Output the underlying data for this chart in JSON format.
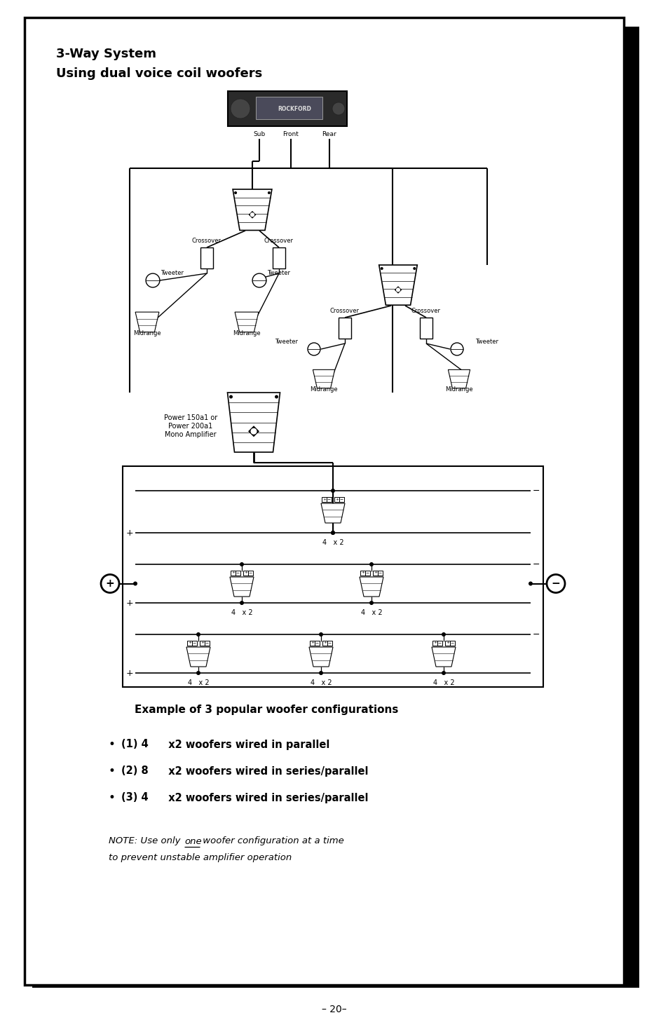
{
  "page_bg": "#ffffff",
  "border_color": "#000000",
  "title_line1": "3-Way System",
  "title_line2": "Using dual voice coil woofers",
  "title_fontsize": 13,
  "subtitle_diagram": "Example of 3 popular woofer configurations",
  "bullet1_pre": "(1) 4",
  "bullet1_post": "  x2 woofers wired in parallel",
  "bullet2_pre": "(2) 8",
  "bullet2_post": "  x2 woofers wired in series/parallel",
  "bullet3_pre": "(3) 4",
  "bullet3_post": "  x2 woofers wired in series/parallel",
  "note_pre": "NOTE: Use only ",
  "note_und": "one",
  "note_post": " woofer configuration at a time",
  "note_line2": "to prevent unstable amplifier operation",
  "page_number": "– 20–",
  "label_sub": "Sub",
  "label_front": "Front",
  "label_rear": "Rear",
  "label_crossover": "Crossover",
  "label_tweeter": "Tweeter",
  "label_midrange": "Midrange",
  "label_power": "Power 150a1 or\nPower 200a1\nMono Amplifier",
  "label_4x2": "4   x 2"
}
